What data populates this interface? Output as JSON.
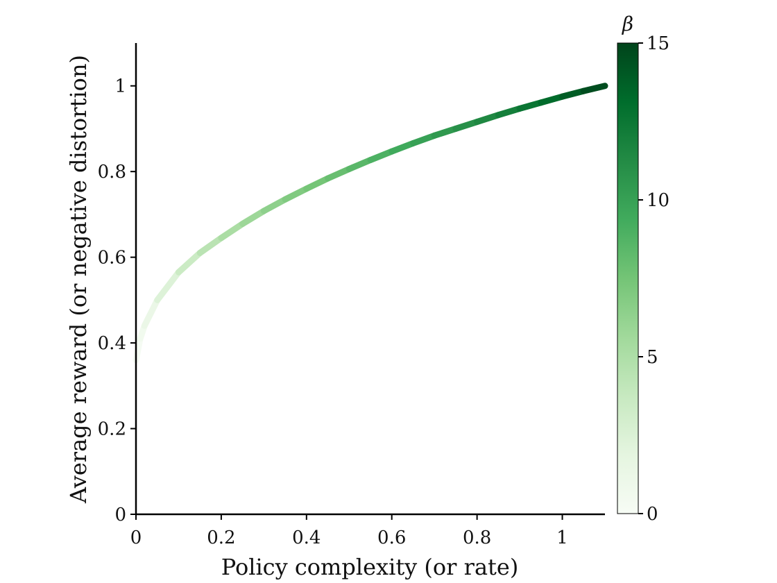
{
  "chart_data": {
    "type": "line",
    "title": "",
    "xlabel": "Policy complexity (or rate)",
    "ylabel": "Average reward (or negative distortion)",
    "xlim": [
      0,
      1.1
    ],
    "ylim": [
      0,
      1.1
    ],
    "xticks": [
      0,
      0.2,
      0.4,
      0.6,
      0.8,
      1
    ],
    "xtick_labels": [
      "0",
      "0.2",
      "0.4",
      "0.6",
      "0.8",
      "1"
    ],
    "yticks": [
      0,
      0.2,
      0.4,
      0.6,
      0.8,
      1
    ],
    "ytick_labels": [
      "0",
      "0.2",
      "0.4",
      "0.6",
      "0.8",
      "1"
    ],
    "grid": false,
    "series": [
      {
        "x": [
          0,
          0.01,
          0.02,
          0.05,
          0.1,
          0.15,
          0.2,
          0.25,
          0.3,
          0.35,
          0.4,
          0.45,
          0.5,
          0.55,
          0.6,
          0.65,
          0.7,
          0.75,
          0.8,
          0.85,
          0.9,
          0.95,
          1.0,
          1.05,
          1.1
        ],
        "y": [
          0.36,
          0.41,
          0.44,
          0.5,
          0.565,
          0.61,
          0.645,
          0.678,
          0.708,
          0.735,
          0.76,
          0.784,
          0.806,
          0.827,
          0.847,
          0.866,
          0.884,
          0.9,
          0.916,
          0.932,
          0.947,
          0.961,
          0.975,
          0.988,
          1.0
        ],
        "beta": [
          0,
          0.4,
          0.8,
          1.7,
          3.0,
          4.0,
          4.8,
          5.5,
          6.1,
          6.7,
          7.2,
          7.7,
          8.2,
          8.7,
          9.2,
          9.7,
          10.2,
          10.7,
          11.2,
          11.7,
          12.3,
          12.9,
          13.5,
          14.2,
          15.0
        ]
      }
    ],
    "colorbar": {
      "title": "β",
      "range": [
        0,
        15
      ],
      "ticks": [
        0,
        5,
        10,
        15
      ],
      "tick_labels": [
        "0",
        "5",
        "10",
        "15"
      ],
      "colormap": "Greens",
      "color_low": "#f7fcf5",
      "color_high": "#00441b"
    }
  }
}
